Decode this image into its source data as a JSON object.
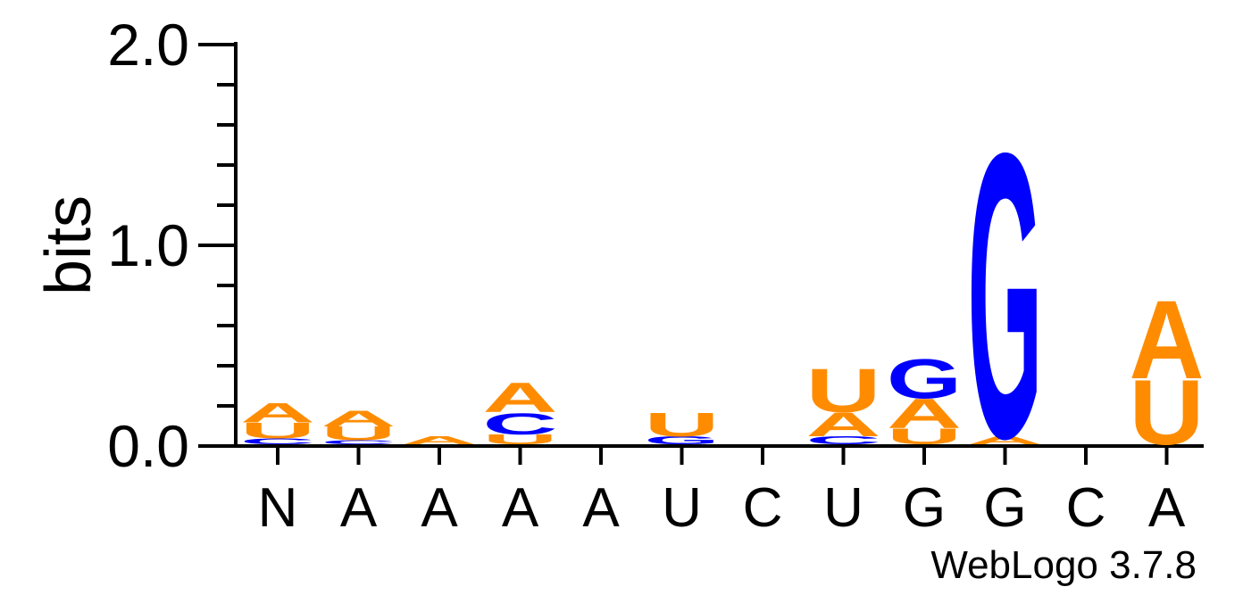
{
  "chart_data": {
    "type": "sequence-logo",
    "ylabel": "bits",
    "ylim": [
      0,
      2
    ],
    "yticks": [
      "0.0",
      "1.0",
      "2.0"
    ],
    "positions": [
      "N",
      "A",
      "A",
      "A",
      "A",
      "U",
      "C",
      "U",
      "G",
      "G",
      "C",
      "A"
    ],
    "colors": {
      "A": "#ff8c00",
      "U": "#ff8c00",
      "G": "#0000ff",
      "C": "#0000ff"
    },
    "stacks": [
      [
        {
          "letter": "C",
          "bits": 0.03
        },
        {
          "letter": "U",
          "bits": 0.08
        },
        {
          "letter": "A",
          "bits": 0.1
        }
      ],
      [
        {
          "letter": "C",
          "bits": 0.02
        },
        {
          "letter": "U",
          "bits": 0.07
        },
        {
          "letter": "A",
          "bits": 0.08
        }
      ],
      [
        {
          "letter": "A",
          "bits": 0.04
        }
      ],
      [
        {
          "letter": "U",
          "bits": 0.05
        },
        {
          "letter": "C",
          "bits": 0.11
        },
        {
          "letter": "A",
          "bits": 0.15
        }
      ],
      [],
      [
        {
          "letter": "G",
          "bits": 0.04
        },
        {
          "letter": "U",
          "bits": 0.12
        }
      ],
      [],
      [
        {
          "letter": "C",
          "bits": 0.04
        },
        {
          "letter": "A",
          "bits": 0.12
        },
        {
          "letter": "U",
          "bits": 0.22
        }
      ],
      [
        {
          "letter": "U",
          "bits": 0.08
        },
        {
          "letter": "A",
          "bits": 0.15
        },
        {
          "letter": "G",
          "bits": 0.2
        }
      ],
      [
        {
          "letter": "A",
          "bits": 0.04
        },
        {
          "letter": "G",
          "bits": 1.45
        }
      ],
      [],
      [
        {
          "letter": "U",
          "bits": 0.33
        },
        {
          "letter": "A",
          "bits": 0.4
        }
      ]
    ]
  },
  "credit": "WebLogo 3.7.8"
}
